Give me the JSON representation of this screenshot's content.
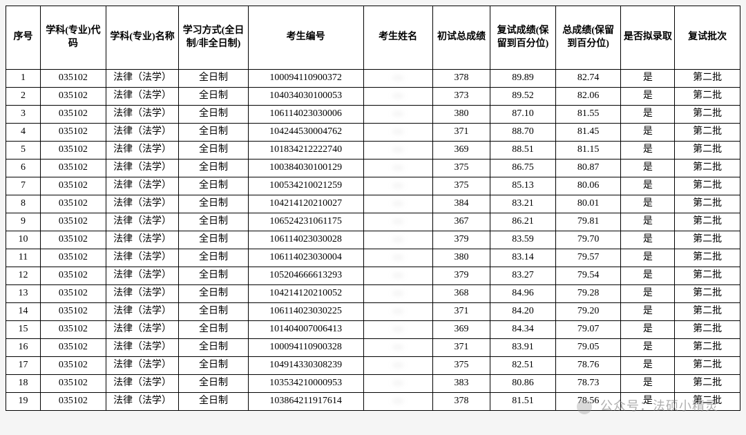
{
  "table": {
    "columns": [
      {
        "key": "seq",
        "label": "序号",
        "class": "col-seq"
      },
      {
        "key": "code",
        "label": "学科(专业)代码",
        "class": "col-code"
      },
      {
        "key": "major",
        "label": "学科(专业)名称",
        "class": "col-major"
      },
      {
        "key": "mode",
        "label": "学习方式(全日制/非全日制)",
        "class": "col-mode"
      },
      {
        "key": "cand_id",
        "label": "考生编号",
        "class": "col-id"
      },
      {
        "key": "cand_name",
        "label": "考生姓名",
        "class": "col-name"
      },
      {
        "key": "score1",
        "label": "初试总成绩",
        "class": "col-s1"
      },
      {
        "key": "score2",
        "label": "复试成绩(保留到百分位)",
        "class": "col-s2"
      },
      {
        "key": "score3",
        "label": "总成绩(保留到百分位)",
        "class": "col-s3"
      },
      {
        "key": "admit",
        "label": "是否拟录取",
        "class": "col-admit"
      },
      {
        "key": "batch",
        "label": "复试批次",
        "class": "col-batch"
      }
    ],
    "rows": [
      {
        "seq": "1",
        "code": "035102",
        "major": "法律（法学）",
        "mode": "全日制",
        "cand_id": "100094110900372",
        "cand_name": "—",
        "score1": "378",
        "score2": "89.89",
        "score3": "82.74",
        "admit": "是",
        "batch": "第二批"
      },
      {
        "seq": "2",
        "code": "035102",
        "major": "法律（法学）",
        "mode": "全日制",
        "cand_id": "104034030100053",
        "cand_name": "—",
        "score1": "373",
        "score2": "89.52",
        "score3": "82.06",
        "admit": "是",
        "batch": "第二批"
      },
      {
        "seq": "3",
        "code": "035102",
        "major": "法律（法学）",
        "mode": "全日制",
        "cand_id": "106114023030006",
        "cand_name": "—",
        "score1": "380",
        "score2": "87.10",
        "score3": "81.55",
        "admit": "是",
        "batch": "第二批"
      },
      {
        "seq": "4",
        "code": "035102",
        "major": "法律（法学）",
        "mode": "全日制",
        "cand_id": "104244530004762",
        "cand_name": "—",
        "score1": "371",
        "score2": "88.70",
        "score3": "81.45",
        "admit": "是",
        "batch": "第二批"
      },
      {
        "seq": "5",
        "code": "035102",
        "major": "法律（法学）",
        "mode": "全日制",
        "cand_id": "101834212222740",
        "cand_name": "—",
        "score1": "369",
        "score2": "88.51",
        "score3": "81.15",
        "admit": "是",
        "batch": "第二批"
      },
      {
        "seq": "6",
        "code": "035102",
        "major": "法律（法学）",
        "mode": "全日制",
        "cand_id": "100384030100129",
        "cand_name": "—",
        "score1": "375",
        "score2": "86.75",
        "score3": "80.87",
        "admit": "是",
        "batch": "第二批"
      },
      {
        "seq": "7",
        "code": "035102",
        "major": "法律（法学）",
        "mode": "全日制",
        "cand_id": "100534210021259",
        "cand_name": "—",
        "score1": "375",
        "score2": "85.13",
        "score3": "80.06",
        "admit": "是",
        "batch": "第二批"
      },
      {
        "seq": "8",
        "code": "035102",
        "major": "法律（法学）",
        "mode": "全日制",
        "cand_id": "104214120210027",
        "cand_name": "—",
        "score1": "384",
        "score2": "83.21",
        "score3": "80.01",
        "admit": "是",
        "batch": "第二批"
      },
      {
        "seq": "9",
        "code": "035102",
        "major": "法律（法学）",
        "mode": "全日制",
        "cand_id": "106524231061175",
        "cand_name": "—",
        "score1": "367",
        "score2": "86.21",
        "score3": "79.81",
        "admit": "是",
        "batch": "第二批"
      },
      {
        "seq": "10",
        "code": "035102",
        "major": "法律（法学）",
        "mode": "全日制",
        "cand_id": "106114023030028",
        "cand_name": "—",
        "score1": "379",
        "score2": "83.59",
        "score3": "79.70",
        "admit": "是",
        "batch": "第二批"
      },
      {
        "seq": "11",
        "code": "035102",
        "major": "法律（法学）",
        "mode": "全日制",
        "cand_id": "106114023030004",
        "cand_name": "—",
        "score1": "380",
        "score2": "83.14",
        "score3": "79.57",
        "admit": "是",
        "batch": "第二批"
      },
      {
        "seq": "12",
        "code": "035102",
        "major": "法律（法学）",
        "mode": "全日制",
        "cand_id": "105204666613293",
        "cand_name": "—",
        "score1": "379",
        "score2": "83.27",
        "score3": "79.54",
        "admit": "是",
        "batch": "第二批"
      },
      {
        "seq": "13",
        "code": "035102",
        "major": "法律（法学）",
        "mode": "全日制",
        "cand_id": "104214120210052",
        "cand_name": "—",
        "score1": "368",
        "score2": "84.96",
        "score3": "79.28",
        "admit": "是",
        "batch": "第二批"
      },
      {
        "seq": "14",
        "code": "035102",
        "major": "法律（法学）",
        "mode": "全日制",
        "cand_id": "106114023030225",
        "cand_name": "—",
        "score1": "371",
        "score2": "84.20",
        "score3": "79.20",
        "admit": "是",
        "batch": "第二批"
      },
      {
        "seq": "15",
        "code": "035102",
        "major": "法律（法学）",
        "mode": "全日制",
        "cand_id": "101404007006413",
        "cand_name": "—",
        "score1": "369",
        "score2": "84.34",
        "score3": "79.07",
        "admit": "是",
        "batch": "第二批"
      },
      {
        "seq": "16",
        "code": "035102",
        "major": "法律（法学）",
        "mode": "全日制",
        "cand_id": "100094110900328",
        "cand_name": "—",
        "score1": "371",
        "score2": "83.91",
        "score3": "79.05",
        "admit": "是",
        "batch": "第二批"
      },
      {
        "seq": "17",
        "code": "035102",
        "major": "法律（法学）",
        "mode": "全日制",
        "cand_id": "104914330308239",
        "cand_name": "—",
        "score1": "375",
        "score2": "82.51",
        "score3": "78.76",
        "admit": "是",
        "batch": "第二批"
      },
      {
        "seq": "18",
        "code": "035102",
        "major": "法律（法学）",
        "mode": "全日制",
        "cand_id": "103534210000953",
        "cand_name": "—",
        "score1": "383",
        "score2": "80.86",
        "score3": "78.73",
        "admit": "是",
        "batch": "第二批"
      },
      {
        "seq": "19",
        "code": "035102",
        "major": "法律（法学）",
        "mode": "全日制",
        "cand_id": "103864211917614",
        "cand_name": "—",
        "score1": "378",
        "score2": "81.51",
        "score3": "78.56",
        "admit": "是",
        "batch": "第二批"
      }
    ],
    "font_family": "SimSun",
    "border_color": "#000000",
    "background_color": "#ffffff",
    "header_fontsize": 14,
    "cell_fontsize": 14
  },
  "watermark": {
    "text": "公众号：法硕小精灵"
  }
}
